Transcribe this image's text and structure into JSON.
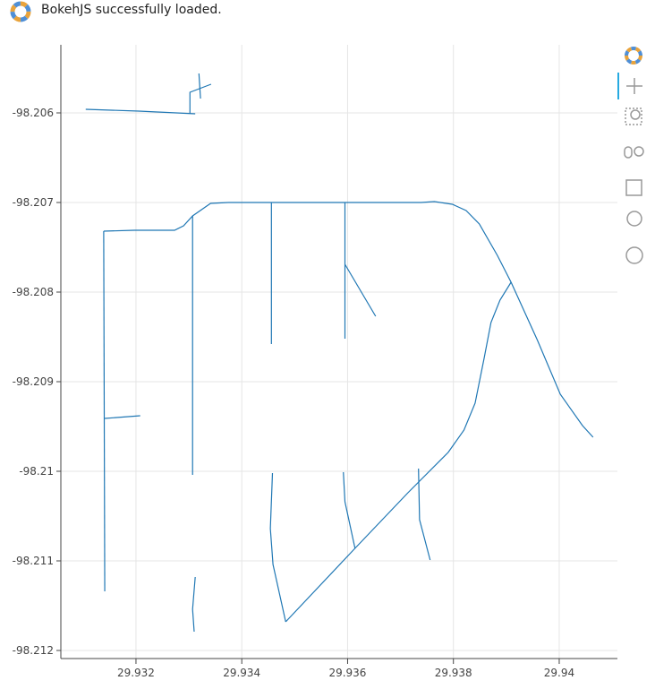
{
  "notice": "BokehJS successfully loaded.",
  "chart_data": {
    "type": "line",
    "color": "#1f77b4",
    "grid": true,
    "xlim": [
      29.93058,
      29.9411
    ],
    "ylim": [
      -98.21209,
      -98.20524
    ],
    "xticks": [
      29.932,
      29.934,
      29.936,
      29.938,
      29.94
    ],
    "yticks": [
      -98.206,
      -98.207,
      -98.208,
      -98.209,
      -98.21,
      -98.211,
      -98.212
    ],
    "series": [
      {
        "x": [
          29.93105,
          29.93205,
          29.93312
        ],
        "values": [
          -98.20596,
          -98.20598,
          -98.20601
        ]
      },
      {
        "x": [
          29.93319,
          29.93322
        ],
        "values": [
          -98.20556,
          -98.20584
        ]
      },
      {
        "x": [
          29.93302,
          29.93302,
          29.93342
        ],
        "values": [
          -98.20601,
          -98.20577,
          -98.20568
        ]
      },
      {
        "x": [
          29.93139,
          29.93197,
          29.93273,
          29.9329,
          29.93307,
          29.93341,
          29.93375,
          29.93739,
          29.93764,
          29.93798,
          29.93824,
          29.93849,
          29.93883,
          29.93909,
          29.93959,
          29.94002,
          29.94044,
          29.94064
        ],
        "values": [
          -98.20732,
          -98.20731,
          -98.20731,
          -98.20726,
          -98.20715,
          -98.20701,
          -98.207,
          -98.207,
          -98.20699,
          -98.20702,
          -98.20709,
          -98.20724,
          -98.20759,
          -98.20789,
          -98.20854,
          -98.20914,
          -98.20949,
          -98.20962
        ]
      },
      {
        "x": [
          29.93139,
          29.93141
        ],
        "values": [
          -98.20732,
          -98.21134
        ]
      },
      {
        "x": [
          29.93141,
          29.93208
        ],
        "values": [
          -98.20941,
          -98.20938
        ]
      },
      {
        "x": [
          29.93307,
          29.93307
        ],
        "values": [
          -98.20715,
          -98.21004
        ]
      },
      {
        "x": [
          29.93456,
          29.93456
        ],
        "values": [
          -98.207,
          -98.20858
        ]
      },
      {
        "x": [
          29.93595,
          29.93595
        ],
        "values": [
          -98.207,
          -98.20852
        ]
      },
      {
        "x": [
          29.93595,
          29.93653
        ],
        "values": [
          -98.20769,
          -98.20827
        ]
      },
      {
        "x": [
          29.93909,
          29.93888,
          29.93871,
          29.93858,
          29.93841,
          29.9382,
          29.9379,
          29.93714,
          29.93614,
          29.93483
        ],
        "values": [
          -98.20789,
          -98.20809,
          -98.20834,
          -98.20874,
          -98.20924,
          -98.20954,
          -98.20979,
          -98.21024,
          -98.21086,
          -98.21168
        ]
      },
      {
        "x": [
          29.93734,
          29.93736,
          29.93756
        ],
        "values": [
          -98.20997,
          -98.21054,
          -98.21099
        ]
      },
      {
        "x": [
          29.93458,
          29.93454,
          29.93459,
          29.93483
        ],
        "values": [
          -98.21002,
          -98.21064,
          -98.21104,
          -98.21168
        ]
      },
      {
        "x": [
          29.93592,
          29.93595,
          29.93614
        ],
        "values": [
          -98.21001,
          -98.21034,
          -98.21086
        ]
      },
      {
        "x": [
          29.93312,
          29.93307,
          29.9331
        ],
        "values": [
          -98.21118,
          -98.21154,
          -98.21179
        ]
      }
    ]
  }
}
